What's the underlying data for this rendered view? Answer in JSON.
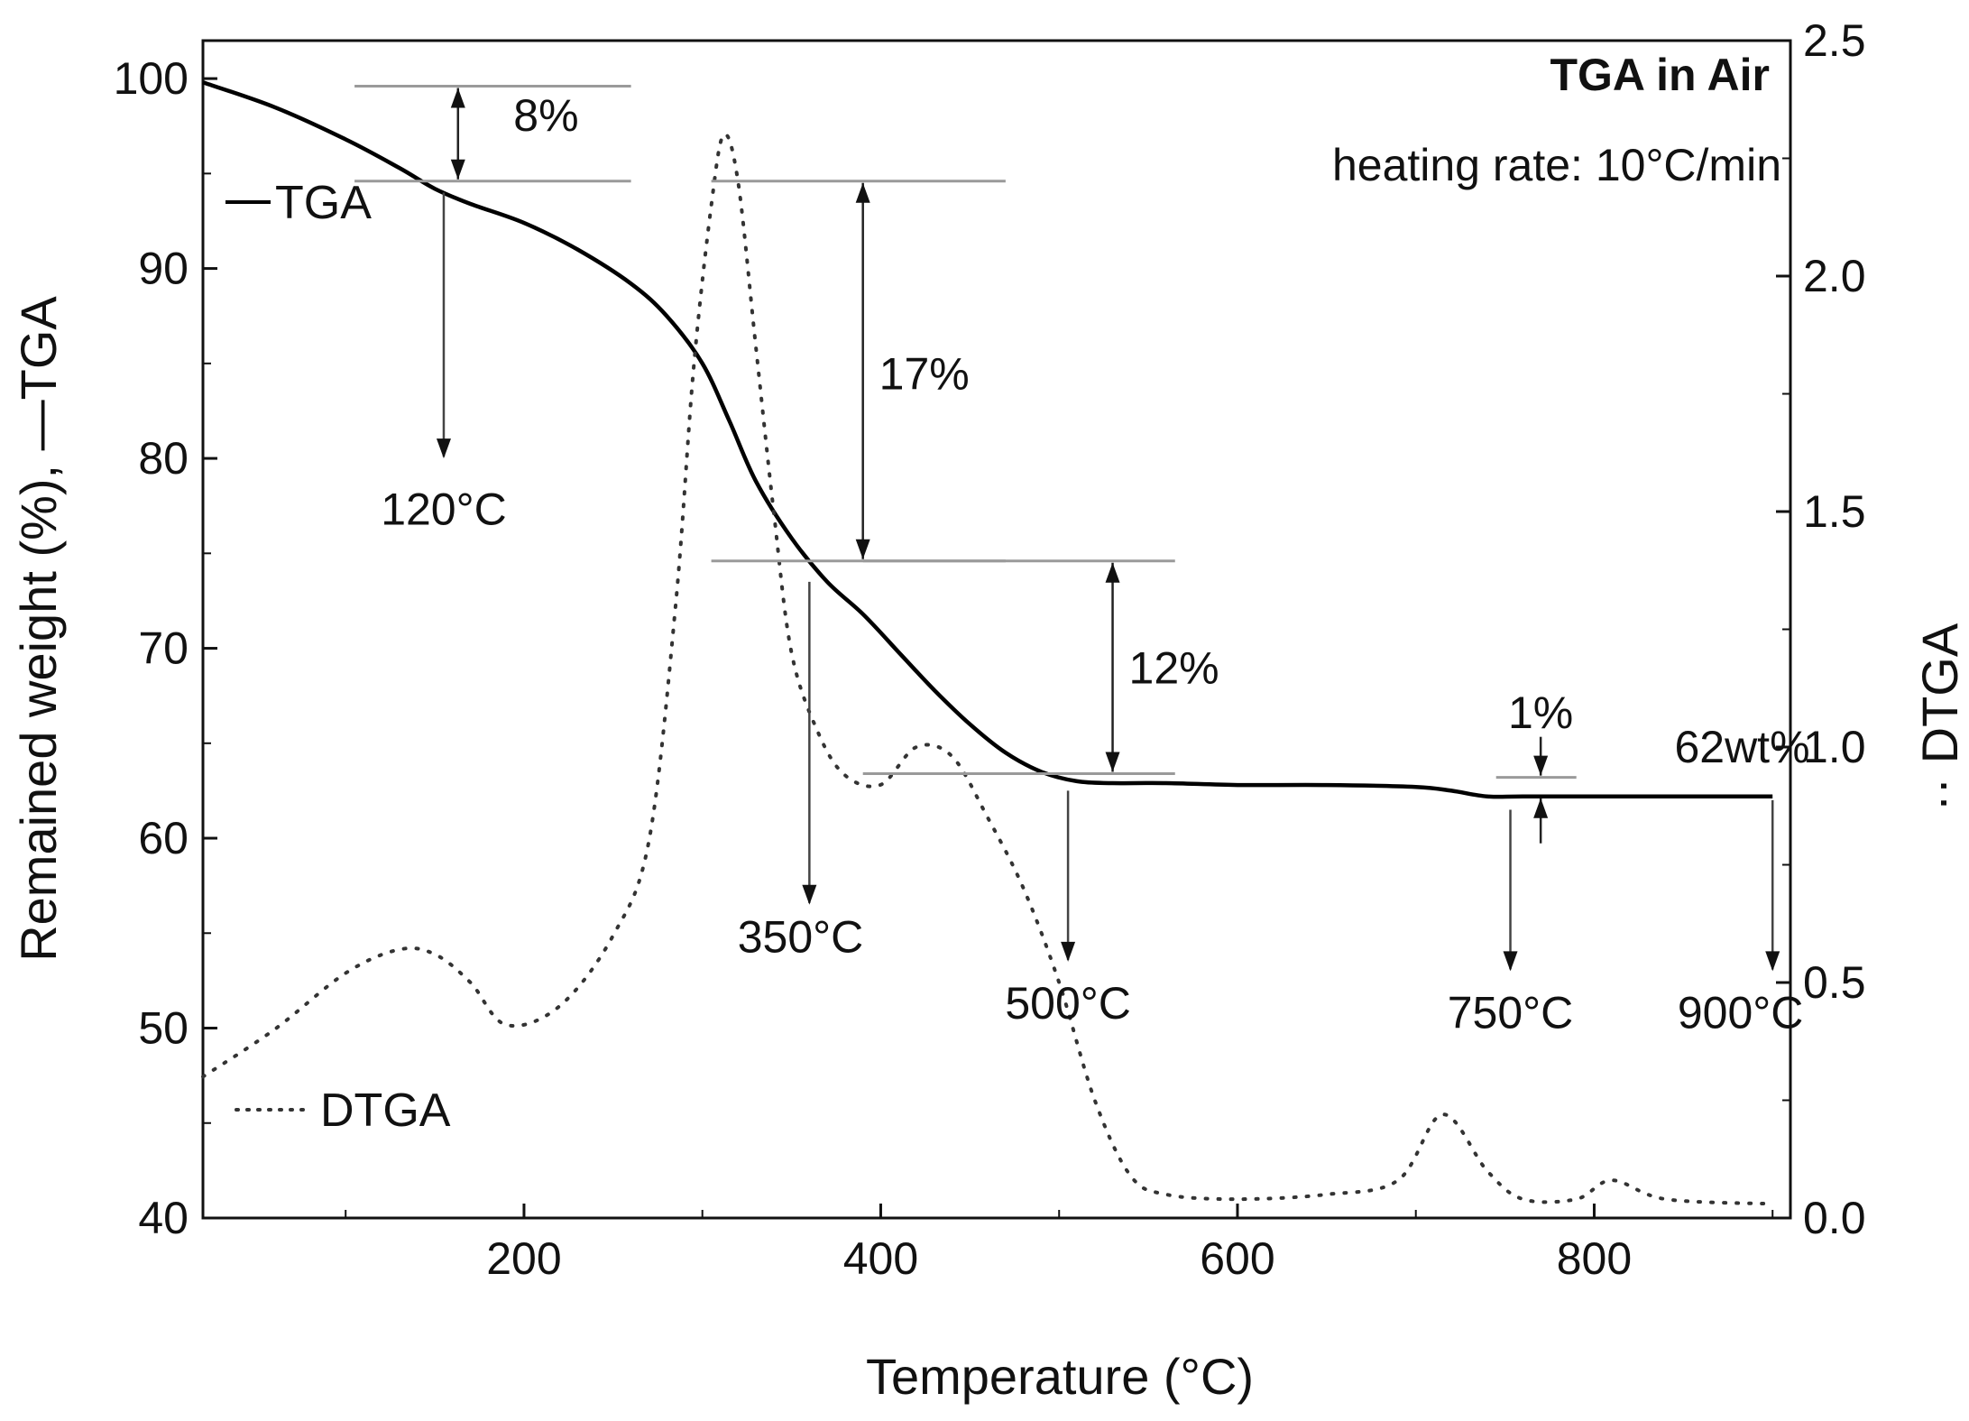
{
  "chart_data": {
    "type": "line",
    "title": "TGA in Air",
    "subtitle": "heating rate: 10°C/min",
    "xlabel": "Temperature (°C)",
    "ylabel_left": "Remained weight (%),  —TGA",
    "ylabel_right": "·· DTGA",
    "xlim": [
      20,
      910
    ],
    "ylim_left": [
      40,
      102
    ],
    "ylim_right": [
      0,
      2.5
    ],
    "x_ticks": [
      200,
      400,
      600,
      800
    ],
    "y_left_ticks": [
      40,
      50,
      60,
      70,
      80,
      90,
      100
    ],
    "y_right_ticks": [
      0.0,
      0.5,
      1.0,
      1.5,
      2.0,
      2.5
    ],
    "x_tick_labels": [
      "200",
      "400",
      "600",
      "800"
    ],
    "y_left_tick_labels": [
      "40",
      "50",
      "60",
      "70",
      "80",
      "90",
      "100"
    ],
    "y_right_tick_labels": [
      "0.0",
      "0.5",
      "1.0",
      "1.5",
      "2.0",
      "2.5"
    ],
    "grid": false,
    "legend": [
      {
        "label": "TGA",
        "style": "solid"
      },
      {
        "label": "DTGA",
        "style": "dotted"
      }
    ],
    "series": [
      {
        "name": "TGA",
        "axis": "left",
        "style": "solid",
        "color": "#000000",
        "x": [
          20,
          60,
          100,
          130,
          150,
          170,
          200,
          230,
          260,
          280,
          300,
          315,
          330,
          350,
          370,
          390,
          410,
          430,
          450,
          470,
          490,
          510,
          530,
          560,
          600,
          650,
          700,
          720,
          740,
          760,
          800,
          850,
          900
        ],
        "y": [
          99.8,
          98.5,
          96.8,
          95.3,
          94.2,
          93.4,
          92.4,
          91.0,
          89.2,
          87.5,
          85.0,
          82.0,
          78.8,
          75.8,
          73.5,
          71.8,
          69.8,
          67.8,
          66.0,
          64.5,
          63.5,
          63.0,
          62.9,
          62.9,
          62.8,
          62.8,
          62.7,
          62.5,
          62.2,
          62.2,
          62.2,
          62.2,
          62.2
        ]
      },
      {
        "name": "DTGA",
        "axis": "right",
        "style": "dotted",
        "color": "#333333",
        "x": [
          20,
          60,
          100,
          130,
          150,
          170,
          190,
          220,
          250,
          270,
          285,
          295,
          305,
          312,
          320,
          330,
          340,
          350,
          365,
          380,
          400,
          420,
          440,
          460,
          480,
          500,
          520,
          540,
          560,
          600,
          650,
          690,
          715,
          740,
          760,
          790,
          810,
          840,
          900
        ],
        "y": [
          0.3,
          0.4,
          0.52,
          0.57,
          0.56,
          0.5,
          0.41,
          0.45,
          0.6,
          0.8,
          1.3,
          1.8,
          2.15,
          2.3,
          2.2,
          1.85,
          1.5,
          1.2,
          1.03,
          0.94,
          0.92,
          1.0,
          0.98,
          0.85,
          0.7,
          0.5,
          0.25,
          0.09,
          0.05,
          0.04,
          0.05,
          0.08,
          0.22,
          0.1,
          0.04,
          0.04,
          0.08,
          0.04,
          0.03
        ]
      }
    ],
    "annotations": {
      "steps": [
        {
          "label": "8%",
          "x_from": 105,
          "x_to": 260,
          "y_top": 99.6,
          "y_bottom": 94.6,
          "arrow_x": 163,
          "label_x": 185,
          "label_y": 98.1
        },
        {
          "label": "17%",
          "x_from": 305,
          "x_to": 470,
          "y_top": 94.6,
          "y_bottom": 74.6,
          "arrow_x": 390,
          "label_x": 390,
          "label_y": 84.5
        },
        {
          "label": "12%",
          "x_from": 390,
          "x_to": 565,
          "y_top": 74.6,
          "y_bottom": 63.4,
          "arrow_x": 530,
          "label_x": 530,
          "label_y": 69.0
        }
      ],
      "small_step": {
        "label": "1%",
        "x_from": 745,
        "x_to": 790,
        "y_top": 63.2,
        "y_bottom": 62.2,
        "arrow_x": 770,
        "label_x": 770,
        "label_y": 65.8
      },
      "temperature_markers": [
        {
          "label": "120°C",
          "x": 155,
          "y_from": 94.0,
          "y_to": 80.0,
          "label_x": 155,
          "label_y": 76.5
        },
        {
          "label": "350°C",
          "x": 360,
          "y_from": 73.5,
          "y_to": 56.5,
          "label_x": 355,
          "label_y": 54.0
        },
        {
          "label": "500°C",
          "x": 505,
          "y_from": 62.5,
          "y_to": 53.5,
          "label_x": 505,
          "label_y": 50.5
        },
        {
          "label": "750°C",
          "x": 753,
          "y_from": 61.5,
          "y_to": 53.0,
          "label_x": 753,
          "label_y": 50.0
        },
        {
          "label": "900°C",
          "x": 900,
          "y_from": 62.0,
          "y_to": 53.0,
          "label_x": 882,
          "label_y": 50.0
        }
      ],
      "final_label": {
        "label": "62wt%",
        "x": 845,
        "y": 64.0
      }
    }
  }
}
